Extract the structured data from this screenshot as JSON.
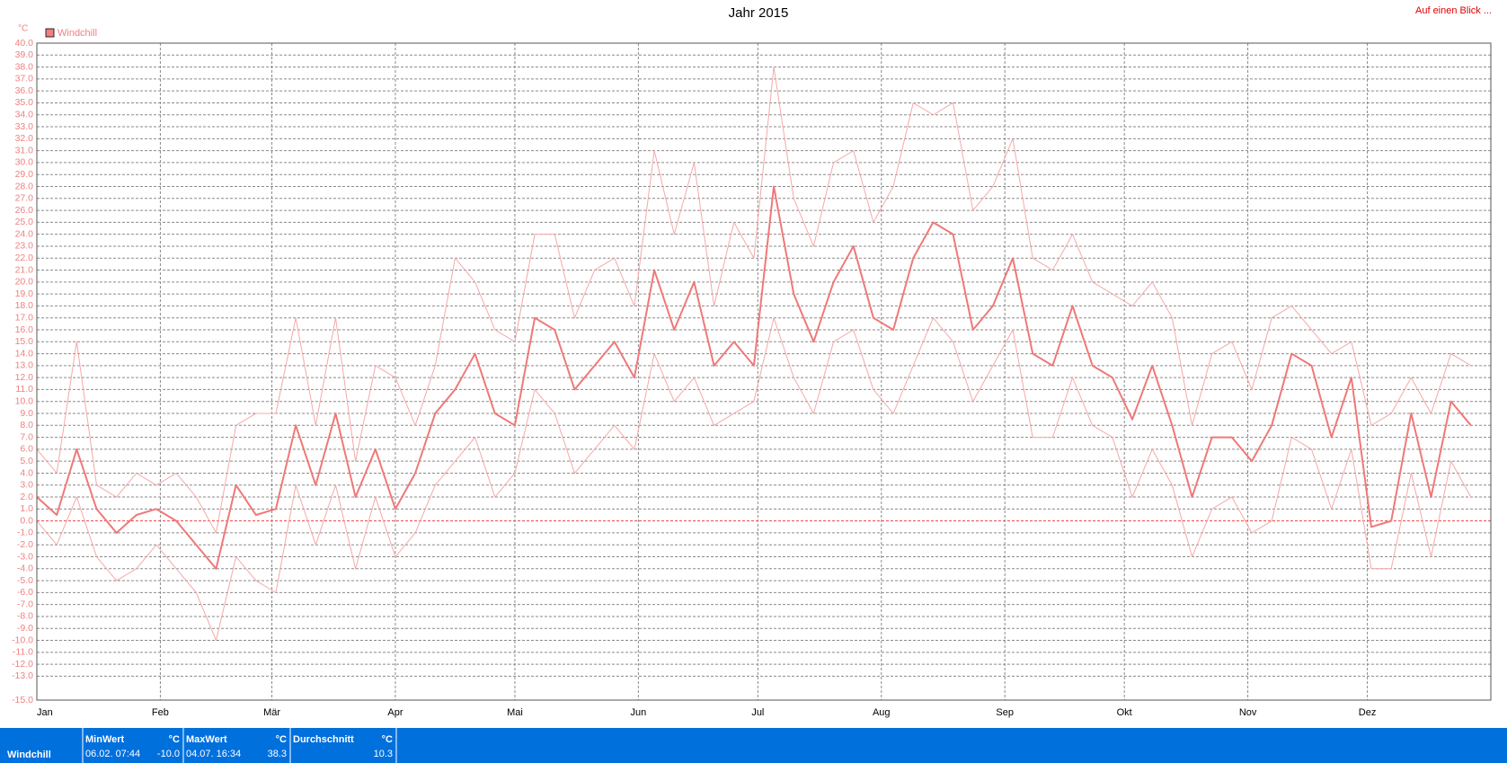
{
  "top_link": "Auf einen Blick ...",
  "chart_data": {
    "type": "line",
    "title": "Jahr 2015",
    "y_unit": "°C",
    "legend": "Windchill",
    "legend_color": "#f08080",
    "grid": true,
    "xlim": [
      1,
      366
    ],
    "xticks": [
      {
        "value": 1,
        "label": "Jan"
      },
      {
        "value": 32,
        "label": "Feb"
      },
      {
        "value": 60,
        "label": "Mär"
      },
      {
        "value": 91,
        "label": "Apr"
      },
      {
        "value": 121,
        "label": "Mai"
      },
      {
        "value": 152,
        "label": "Jun"
      },
      {
        "value": 182,
        "label": "Jul"
      },
      {
        "value": 213,
        "label": "Aug"
      },
      {
        "value": 244,
        "label": "Sep"
      },
      {
        "value": 274,
        "label": "Okt"
      },
      {
        "value": 305,
        "label": "Nov"
      },
      {
        "value": 335,
        "label": "Dez"
      }
    ],
    "ylim": [
      -15,
      40
    ],
    "yticks": [
      {
        "value": -15,
        "label": "-15.0"
      },
      {
        "value": -13,
        "label": "-13.0"
      },
      {
        "value": -12,
        "label": "-12.0"
      },
      {
        "value": -11,
        "label": "-11.0"
      },
      {
        "value": -10,
        "label": "-10.0"
      },
      {
        "value": -9,
        "label": "-9.0"
      },
      {
        "value": -8,
        "label": "-8.0"
      },
      {
        "value": -7,
        "label": "-7.0"
      },
      {
        "value": -6,
        "label": "-6.0"
      },
      {
        "value": -5,
        "label": "-5.0"
      },
      {
        "value": -4,
        "label": "-4.0"
      },
      {
        "value": -3,
        "label": "-3.0"
      },
      {
        "value": -2,
        "label": "-2.0"
      },
      {
        "value": -1,
        "label": "-1.0"
      },
      {
        "value": 0,
        "label": "0.0"
      },
      {
        "value": 1,
        "label": "1.0"
      },
      {
        "value": 2,
        "label": "2.0"
      },
      {
        "value": 3,
        "label": "3.0"
      },
      {
        "value": 4,
        "label": "4.0"
      },
      {
        "value": 5,
        "label": "5.0"
      },
      {
        "value": 6,
        "label": "6.0"
      },
      {
        "value": 7,
        "label": "7.0"
      },
      {
        "value": 8,
        "label": "8.0"
      },
      {
        "value": 9,
        "label": "9.0"
      },
      {
        "value": 10,
        "label": "10.0"
      },
      {
        "value": 11,
        "label": "11.0"
      },
      {
        "value": 12,
        "label": "12.0"
      },
      {
        "value": 13,
        "label": "13.0"
      },
      {
        "value": 14,
        "label": "14.0"
      },
      {
        "value": 15,
        "label": "15.0"
      },
      {
        "value": 16,
        "label": "16.0"
      },
      {
        "value": 17,
        "label": "17.0"
      },
      {
        "value": 18,
        "label": "18.0"
      },
      {
        "value": 19,
        "label": "19.0"
      },
      {
        "value": 20,
        "label": "20.0"
      },
      {
        "value": 21,
        "label": "21.0"
      },
      {
        "value": 22,
        "label": "22.0"
      },
      {
        "value": 23,
        "label": "23.0"
      },
      {
        "value": 24,
        "label": "24.0"
      },
      {
        "value": 25,
        "label": "25.0"
      },
      {
        "value": 26,
        "label": "26.0"
      },
      {
        "value": 27,
        "label": "27.0"
      },
      {
        "value": 28,
        "label": "28.0"
      },
      {
        "value": 29,
        "label": "29.0"
      },
      {
        "value": 30,
        "label": "30.0"
      },
      {
        "value": 31,
        "label": "31.0"
      },
      {
        "value": 32,
        "label": "32.0"
      },
      {
        "value": 33,
        "label": "33.0"
      },
      {
        "value": 34,
        "label": "34.0"
      },
      {
        "value": 35,
        "label": "35.0"
      },
      {
        "value": 36,
        "label": "36.0"
      },
      {
        "value": 37,
        "label": "37.0"
      },
      {
        "value": 38,
        "label": "38.0"
      },
      {
        "value": 39,
        "label": "39.0"
      },
      {
        "value": 40,
        "label": "40.0"
      }
    ],
    "x": [
      1,
      6,
      11,
      16,
      21,
      26,
      31,
      36,
      41,
      46,
      51,
      56,
      61,
      66,
      71,
      76,
      81,
      86,
      91,
      96,
      101,
      106,
      111,
      116,
      121,
      126,
      131,
      136,
      141,
      146,
      151,
      156,
      161,
      166,
      171,
      176,
      181,
      186,
      191,
      196,
      201,
      206,
      211,
      216,
      221,
      226,
      231,
      236,
      241,
      246,
      251,
      256,
      261,
      266,
      271,
      276,
      281,
      286,
      291,
      296,
      301,
      306,
      311,
      316,
      321,
      326,
      331,
      336,
      341,
      346,
      351,
      356,
      361
    ],
    "series": [
      {
        "color": "#f6a8a8",
        "width": 1,
        "values": [
          6,
          4,
          15,
          3,
          2,
          4,
          3,
          4,
          2,
          -1,
          8,
          9,
          9,
          17,
          8,
          17,
          5,
          13,
          12,
          8,
          13,
          22,
          20,
          16,
          15,
          24,
          24,
          17,
          21,
          22,
          18,
          31,
          24,
          30,
          18,
          25,
          22,
          38,
          27,
          23,
          30,
          31,
          25,
          28,
          35,
          34,
          35,
          26,
          28,
          32,
          22,
          21,
          24,
          20,
          19,
          18,
          20,
          17,
          8,
          14,
          15,
          11,
          17,
          18,
          16,
          14,
          15,
          8,
          9,
          12,
          9,
          14,
          13
        ]
      },
      {
        "color": "#f07878",
        "width": 2,
        "values": [
          2,
          0.5,
          6,
          1,
          -1,
          0.5,
          1,
          0,
          -2,
          -4,
          3,
          0.5,
          1,
          8,
          3,
          9,
          2,
          6,
          1,
          4,
          9,
          11,
          14,
          9,
          8,
          17,
          16,
          11,
          13,
          15,
          12,
          21,
          16,
          20,
          13,
          15,
          13,
          28,
          19,
          15,
          20,
          23,
          17,
          16,
          22,
          25,
          24,
          16,
          18,
          22,
          14,
          13,
          18,
          13,
          12,
          8.5,
          13,
          8,
          2,
          7,
          7,
          5,
          8,
          14,
          13,
          7,
          12,
          -0.5,
          0,
          9,
          2,
          10,
          8
        ]
      },
      {
        "color": "#f6a8a8",
        "width": 1,
        "values": [
          0,
          -2,
          2,
          -3,
          -5,
          -4,
          -2,
          -4,
          -6,
          -10,
          -3,
          -5,
          -6,
          3,
          -2,
          3,
          -4,
          2,
          -3,
          -1,
          3,
          5,
          7,
          2,
          4,
          11,
          9,
          4,
          6,
          8,
          6,
          14,
          10,
          12,
          8,
          9,
          10,
          17,
          12,
          9,
          15,
          16,
          11,
          9,
          13,
          17,
          15,
          10,
          13,
          16,
          7,
          7,
          12,
          8,
          7,
          2,
          6,
          3,
          -3,
          1,
          2,
          -1,
          0,
          7,
          6,
          1,
          6,
          -4,
          -4,
          4,
          -3,
          5,
          2
        ]
      }
    ]
  },
  "stats": {
    "label": "Windchill",
    "cells": [
      {
        "title": "MinWert",
        "unit": "°C",
        "date": "06.02.  07:44",
        "value": "-10.0"
      },
      {
        "title": "MaxWert",
        "unit": "°C",
        "date": "04.07.  16:34",
        "value": "38.3"
      },
      {
        "title": "Durchschnitt",
        "unit": "°C",
        "date": "",
        "value": "10.3"
      }
    ]
  }
}
